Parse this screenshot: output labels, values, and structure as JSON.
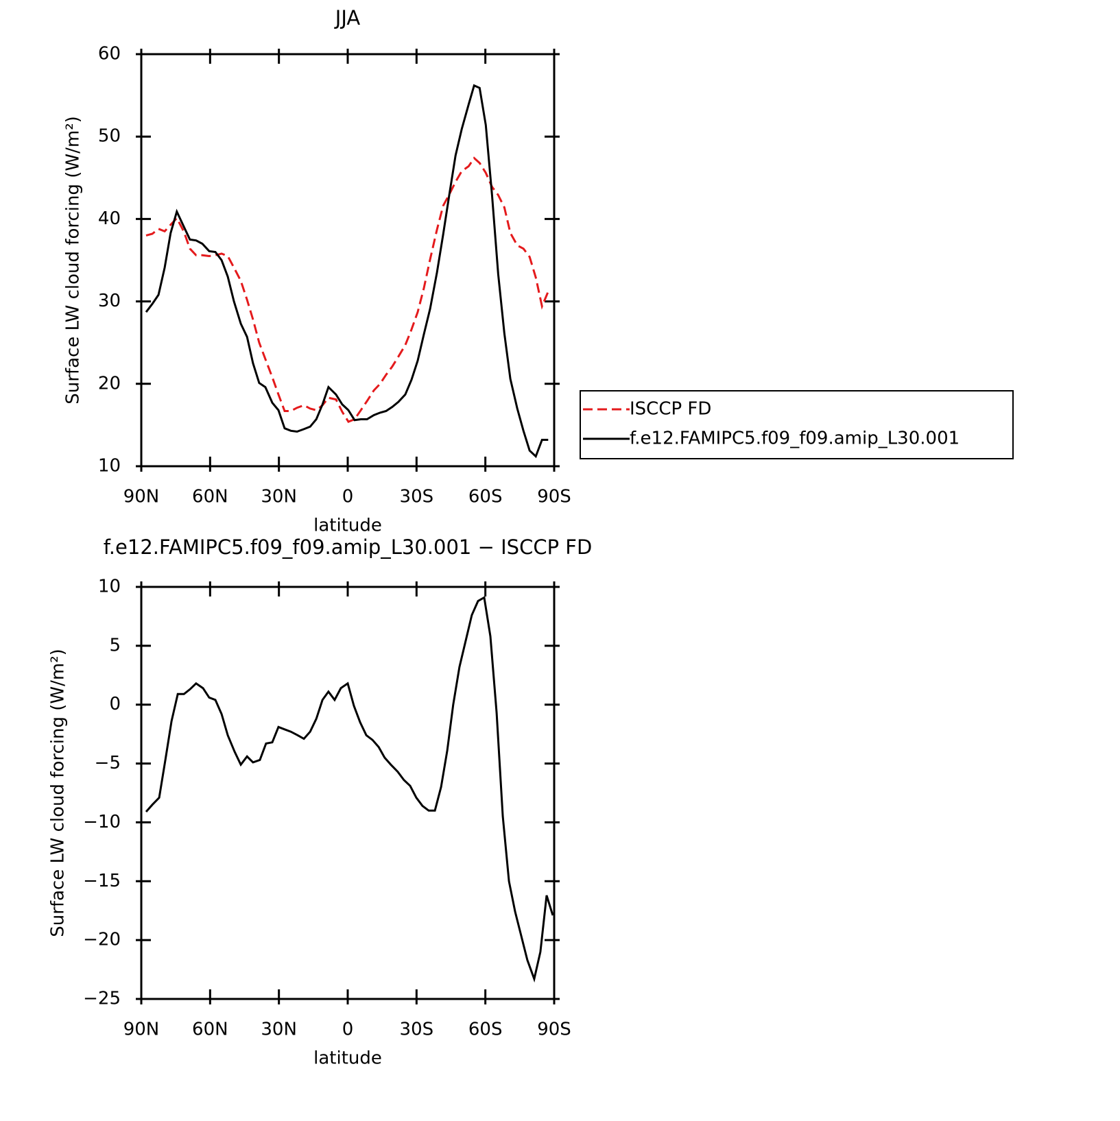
{
  "chart_data": [
    {
      "type": "line",
      "title": "JJA",
      "x_label": "latitude",
      "y_label": "Surface LW cloud forcing (W/m²)",
      "x": [
        87.9,
        85.2,
        82.5,
        79.8,
        77.2,
        74.5,
        71.5,
        68.8,
        66.1,
        63.4,
        60.4,
        57.7,
        55.0,
        52.3,
        49.6,
        46.6,
        43.9,
        41.3,
        38.6,
        35.9,
        32.9,
        30.2,
        27.5,
        24.8,
        22.1,
        19.1,
        16.4,
        13.7,
        11.0,
        8.4,
        5.1,
        2.4,
        -0.3,
        -3.0,
        -5.7,
        -8.4,
        -11.4,
        -14.1,
        -16.7,
        -19.4,
        -22.1,
        -25.1,
        -27.8,
        -30.5,
        -33.2,
        -35.9,
        -38.9,
        -41.6,
        -44.3,
        -47.0,
        -49.7,
        -52.7,
        -55.1,
        -57.5,
        -60.2,
        -62.9,
        -65.6,
        -68.3,
        -70.9,
        -73.9,
        -76.6,
        -79.3,
        -82.0,
        -84.7,
        -87.4
      ],
      "series": [
        {
          "name": "ISCCP FD",
          "color": "#e41a1c",
          "dash": true,
          "values": [
            38.0,
            38.2,
            38.8,
            38.5,
            39.3,
            40.1,
            38.5,
            36.4,
            35.6,
            35.6,
            35.5,
            35.6,
            35.8,
            35.5,
            34.1,
            32.5,
            30.2,
            27.8,
            25.0,
            23.0,
            20.8,
            18.7,
            16.7,
            16.7,
            17.1,
            17.4,
            17.0,
            16.8,
            17.4,
            18.3,
            18.1,
            16.6,
            15.4,
            15.7,
            16.8,
            17.9,
            19.2,
            20.0,
            21.1,
            22.1,
            23.3,
            24.7,
            26.6,
            28.7,
            31.6,
            35.1,
            38.7,
            41.6,
            43.0,
            44.5,
            45.8,
            46.4,
            47.4,
            46.8,
            45.6,
            43.9,
            42.9,
            41.4,
            38.3,
            36.8,
            36.4,
            35.4,
            32.9,
            29.4,
            31.2
          ]
        },
        {
          "name": "f.e12.FAMIPC5.f09_f09.amip_L30.001",
          "color": "#000000",
          "dash": false,
          "values": [
            28.7,
            29.7,
            30.8,
            34.1,
            38.3,
            40.9,
            39.1,
            37.5,
            37.4,
            37.0,
            36.1,
            36.0,
            35.0,
            33.0,
            30.0,
            27.3,
            25.7,
            22.5,
            20.1,
            19.6,
            17.7,
            16.8,
            14.6,
            14.3,
            14.2,
            14.5,
            14.8,
            15.7,
            17.5,
            19.6,
            18.7,
            17.5,
            16.8,
            15.6,
            15.7,
            15.7,
            16.2,
            16.5,
            16.7,
            17.2,
            17.8,
            18.7,
            20.5,
            22.8,
            26.0,
            29.1,
            33.5,
            38.1,
            43.0,
            47.7,
            50.9,
            53.9,
            56.2,
            55.9,
            51.4,
            42.9,
            33.3,
            26.1,
            20.6,
            17.0,
            14.3,
            11.9,
            11.2,
            13.2,
            13.2
          ]
        }
      ],
      "xlim": [
        90,
        -90
      ],
      "xticks": [
        {
          "value": 90,
          "label": "90N"
        },
        {
          "value": 60,
          "label": "60N"
        },
        {
          "value": 30,
          "label": "30N"
        },
        0,
        {
          "value": -30,
          "label": "30S"
        },
        {
          "value": -60,
          "label": "60S"
        },
        {
          "value": -90,
          "label": "90S"
        }
      ],
      "ylim": [
        10,
        60
      ],
      "yticks": [
        10,
        20,
        30,
        40,
        50,
        60
      ],
      "legend": "right"
    },
    {
      "type": "line",
      "title": "f.e12.FAMIPC5.f09_f09.amip_L30.001 − ISCCP FD",
      "x_label": "latitude",
      "y_label": "Surface LW cloud forcing (W/m²)",
      "x": [
        87.9,
        85.2,
        82.2,
        79.5,
        76.8,
        74.1,
        71.4,
        68.8,
        66.1,
        63.1,
        60.4,
        57.7,
        55.0,
        52.3,
        49.3,
        46.6,
        43.9,
        41.3,
        38.3,
        35.6,
        32.9,
        30.2,
        27.5,
        24.8,
        21.8,
        19.1,
        16.4,
        13.7,
        11.0,
        8.4,
        5.7,
        3.0,
        0.0,
        -2.7,
        -5.4,
        -8.1,
        -10.8,
        -13.5,
        -16.1,
        -18.8,
        -21.8,
        -24.5,
        -27.2,
        -29.9,
        -32.6,
        -35.3,
        -38.0,
        -40.7,
        -43.4,
        -46.0,
        -48.7,
        -51.4,
        -54.1,
        -56.8,
        -59.5,
        -62.2,
        -64.9,
        -67.6,
        -70.3,
        -73.0,
        -75.6,
        -78.3,
        -81.3,
        -84.0,
        -86.7,
        -89.4
      ],
      "series": [
        {
          "color": "#000000",
          "dash": false,
          "values": [
            -9.1,
            -8.5,
            -7.9,
            -4.7,
            -1.4,
            0.9,
            0.9,
            1.3,
            1.8,
            1.4,
            0.6,
            0.4,
            -0.8,
            -2.6,
            -4.0,
            -5.1,
            -4.4,
            -4.9,
            -4.7,
            -3.3,
            -3.2,
            -1.9,
            -2.1,
            -2.3,
            -2.6,
            -2.9,
            -2.3,
            -1.2,
            0.4,
            1.1,
            0.4,
            1.4,
            1.8,
            -0.1,
            -1.5,
            -2.6,
            -3.0,
            -3.6,
            -4.5,
            -5.1,
            -5.7,
            -6.4,
            -6.9,
            -7.9,
            -8.6,
            -9.0,
            -9.0,
            -7.0,
            -3.9,
            0.0,
            3.2,
            5.4,
            7.6,
            8.8,
            9.1,
            5.8,
            -0.7,
            -9.5,
            -15.0,
            -17.6,
            -19.6,
            -21.7,
            -23.3,
            -21.0,
            -16.2,
            -17.9
          ]
        }
      ],
      "xlim": [
        90,
        -90
      ],
      "xticks": [
        {
          "value": 90,
          "label": "90N"
        },
        {
          "value": 60,
          "label": "60N"
        },
        {
          "value": 30,
          "label": "30N"
        },
        0,
        {
          "value": -30,
          "label": "30S"
        },
        {
          "value": -60,
          "label": "60S"
        },
        {
          "value": -90,
          "label": "90S"
        }
      ],
      "ylim": [
        -25,
        10
      ],
      "yticks": [
        {
          "value": -25,
          "label": "−25"
        },
        {
          "value": -20,
          "label": "−20"
        },
        {
          "value": -15,
          "label": "−15"
        },
        {
          "value": -10,
          "label": "−10"
        },
        {
          "value": -5,
          "label": "−5"
        },
        0,
        5,
        10
      ]
    }
  ]
}
